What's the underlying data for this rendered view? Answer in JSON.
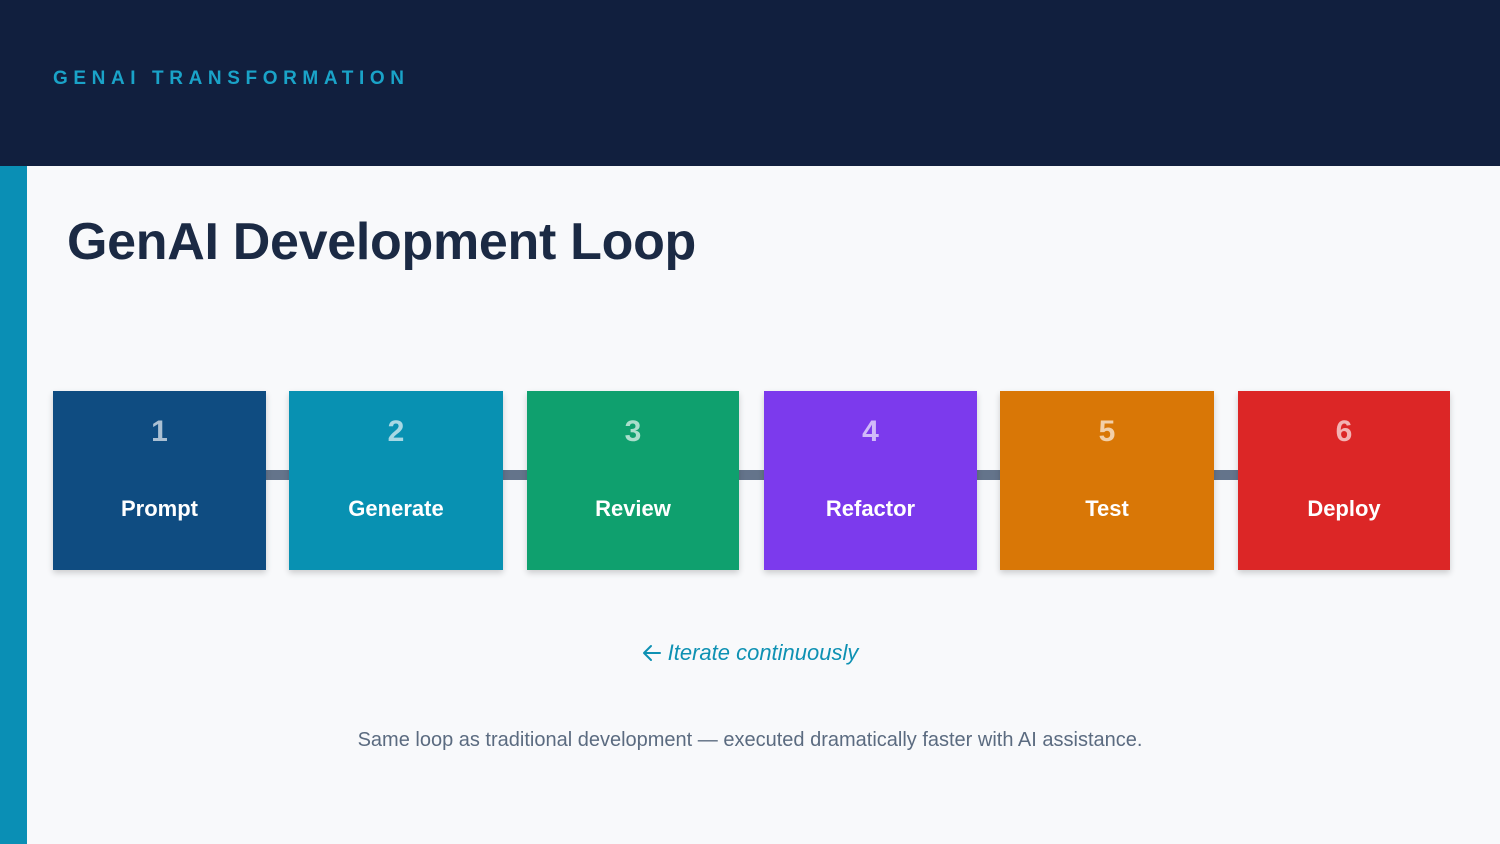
{
  "header": {
    "eyebrow": "GENAI TRANSFORMATION"
  },
  "title": "GenAI Development Loop",
  "steps": [
    {
      "number": "1",
      "label": "Prompt",
      "color": "#0f4c81"
    },
    {
      "number": "2",
      "label": "Generate",
      "color": "#0891b2"
    },
    {
      "number": "3",
      "label": "Review",
      "color": "#0fa06e"
    },
    {
      "number": "4",
      "label": "Refactor",
      "color": "#7c3aed"
    },
    {
      "number": "5",
      "label": "Test",
      "color": "#d97706"
    },
    {
      "number": "6",
      "label": "Deploy",
      "color": "#dc2626"
    }
  ],
  "loop_note": {
    "icon": "arrow-left-icon",
    "text": "Iterate continuously"
  },
  "footnote": "Same loop as traditional development — executed dramatically faster with AI assistance.",
  "colors": {
    "header_bg": "#111f3e",
    "accent": "#0a8fb5",
    "connector": "#64748b"
  }
}
